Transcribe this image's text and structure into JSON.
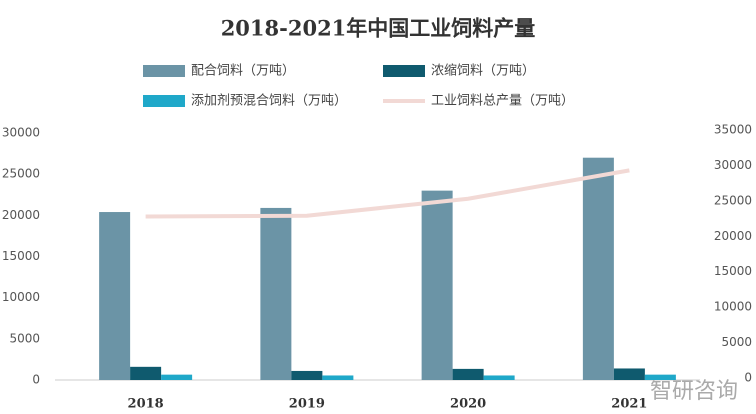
{
  "chart_data": {
    "type": "bar",
    "title": "2018-2021年中国工业饲料产量",
    "categories": [
      "2018",
      "2019",
      "2020",
      "2021"
    ],
    "series": [
      {
        "name": "配合饲料（万吨）",
        "color": "#6b94a6",
        "values": [
          20400,
          20900,
          23000,
          27000
        ]
      },
      {
        "name": "浓缩饲料（万吨）",
        "color": "#0f5a6e",
        "values": [
          1600,
          1100,
          1350,
          1400
        ]
      },
      {
        "name": "添加剂预混合饲料（万吨）",
        "color": "#1fa8c9",
        "values": [
          650,
          550,
          550,
          650
        ]
      },
      {
        "name": "工业饲料总产量（万吨）",
        "color": "#f2d9d5",
        "type": "line",
        "axis": "y2",
        "values": [
          22800,
          22900,
          25300,
          29300
        ]
      }
    ],
    "ylim": [
      0,
      30000
    ],
    "yticks": [
      0,
      5000,
      10000,
      15000,
      20000,
      25000,
      30000
    ],
    "y2lim": [
      0,
      35000
    ],
    "y2ticks": [
      0,
      5000,
      10000,
      15000,
      20000,
      25000,
      30000,
      35000
    ],
    "watermark": "智研咨询"
  }
}
